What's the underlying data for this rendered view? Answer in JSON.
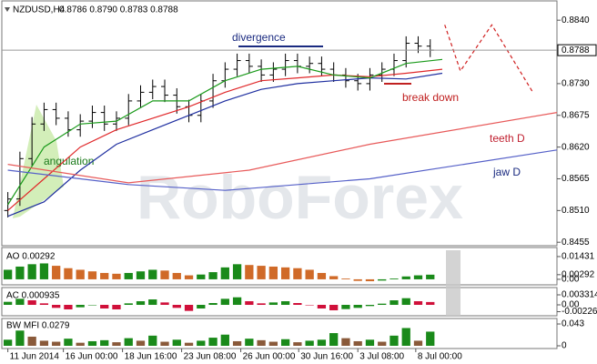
{
  "chart_data": [
    {
      "type": "ohlc",
      "title": "NZDUSD,H4",
      "subtitle": "0.8786 0.8790 0.8783 0.8788",
      "watermark": "RoboForex",
      "annotations": [
        "divergence",
        "break down",
        "angulation",
        "teeth D",
        "jaw D"
      ],
      "xlim": [
        -0.5,
        45.5
      ],
      "ylim": [
        0.8449,
        0.8875
      ],
      "yticks": [
        {
          "value": 0.884,
          "label": "0.8840"
        },
        {
          "value": 0.873,
          "label": "0.8730"
        },
        0.8675,
        {
          "value": 0.862,
          "label": "0.8620"
        },
        0.8565,
        {
          "value": 0.851,
          "label": "0.8510"
        },
        0.8455
      ],
      "current_price": 0.8788,
      "color": "#000000",
      "open": [
        0.851,
        0.853,
        0.86,
        0.866,
        0.8685,
        0.867,
        0.865,
        0.8665,
        0.868,
        0.866,
        0.867,
        0.87,
        0.8715,
        0.8725,
        0.871,
        0.869,
        0.8675,
        0.87,
        0.8735,
        0.8755,
        0.877,
        0.876,
        0.8745,
        0.8755,
        0.877,
        0.876,
        0.8765,
        0.8755,
        0.8745,
        0.8735,
        0.873,
        0.8745,
        0.8755,
        0.877,
        0.88,
        0.8795
      ],
      "high": [
        0.8542,
        0.8612,
        0.8672,
        0.8697,
        0.8697,
        0.8682,
        0.8677,
        0.8692,
        0.8692,
        0.8682,
        0.8712,
        0.8727,
        0.8737,
        0.8737,
        0.8722,
        0.8702,
        0.8712,
        0.8747,
        0.8767,
        0.8782,
        0.8782,
        0.8772,
        0.8767,
        0.8782,
        0.8782,
        0.8777,
        0.8777,
        0.8767,
        0.8757,
        0.8747,
        0.8757,
        0.8767,
        0.8782,
        0.8812,
        0.8812,
        0.8807
      ],
      "low": [
        0.8498,
        0.8518,
        0.8588,
        0.8648,
        0.8658,
        0.8638,
        0.8638,
        0.8653,
        0.8648,
        0.8648,
        0.8658,
        0.8688,
        0.8703,
        0.8698,
        0.8678,
        0.8663,
        0.8663,
        0.8688,
        0.8723,
        0.8743,
        0.8748,
        0.8733,
        0.8733,
        0.8743,
        0.8748,
        0.8748,
        0.8743,
        0.8733,
        0.8723,
        0.8718,
        0.8718,
        0.8733,
        0.8743,
        0.8758,
        0.8783,
        0.8776
      ],
      "close": [
        0.853,
        0.86,
        0.866,
        0.8685,
        0.867,
        0.865,
        0.8665,
        0.868,
        0.866,
        0.867,
        0.87,
        0.8715,
        0.8725,
        0.871,
        0.869,
        0.8675,
        0.87,
        0.8735,
        0.8755,
        0.877,
        0.876,
        0.8745,
        0.8755,
        0.877,
        0.876,
        0.8765,
        0.8755,
        0.8745,
        0.8735,
        0.873,
        0.8745,
        0.8755,
        0.877,
        0.88,
        0.8795,
        0.8788
      ],
      "series": [
        {
          "color": "#1f2fa0",
          "x": [
            0,
            3,
            6,
            9,
            12,
            15,
            18,
            21,
            24,
            27,
            30,
            33,
            36
          ],
          "values": [
            0.85,
            0.8525,
            0.858,
            0.8625,
            0.865,
            0.8675,
            0.87,
            0.872,
            0.873,
            0.8735,
            0.874,
            0.8738,
            0.8748
          ]
        },
        {
          "color": "#e0282a",
          "x": [
            0,
            3,
            6,
            9,
            12,
            15,
            18,
            21,
            24,
            27,
            30,
            33,
            36
          ],
          "values": [
            0.851,
            0.8565,
            0.862,
            0.865,
            0.867,
            0.869,
            0.8715,
            0.8735,
            0.874,
            0.8745,
            0.8742,
            0.8748,
            0.8755
          ]
        },
        {
          "color": "#1a9a1a",
          "x": [
            0,
            3,
            6,
            9,
            12,
            15,
            18,
            21,
            24,
            27,
            30,
            33,
            36
          ],
          "values": [
            0.852,
            0.862,
            0.866,
            0.8665,
            0.87,
            0.87,
            0.8735,
            0.8755,
            0.876,
            0.8745,
            0.874,
            0.8765,
            0.8772
          ]
        },
        {
          "color": "#e85a5a",
          "x": [
            0,
            10,
            20,
            30,
            45.5
          ],
          "values": [
            0.859,
            0.8558,
            0.858,
            0.8625,
            0.868
          ]
        },
        {
          "color": "#5560c8",
          "x": [
            0,
            10,
            18,
            30,
            45.5
          ],
          "values": [
            0.858,
            0.8555,
            0.8545,
            0.8565,
            0.8615
          ]
        },
        {
          "color": "#d02020",
          "dashed": true,
          "x": [
            36.2,
            37.5,
            40.1,
            43.5
          ],
          "values": [
            0.8832,
            0.8752,
            0.8832,
            0.8715
          ]
        }
      ]
    },
    {
      "type": "bar",
      "title": "AO 0.00292",
      "xlim": [
        -0.5,
        45.5
      ],
      "ylim": [
        -0.0029,
        0.02
      ],
      "yticks": [
        0.01431,
        0.00292,
        {
          "value": 0,
          "label": "0.00"
        }
      ],
      "up_color": "#1a8a1a",
      "down_color": "#d06a28",
      "values": [
        0.006,
        0.008,
        0.0095,
        0.01,
        0.0085,
        0.007,
        0.006,
        0.005,
        0.004,
        0.0035,
        0.004,
        0.005,
        0.006,
        0.0055,
        0.004,
        0.0025,
        0.003,
        0.0045,
        0.0075,
        0.0095,
        0.009,
        0.0085,
        0.008,
        0.0075,
        0.007,
        0.006,
        0.004,
        0.002,
        0.0005,
        -0.001,
        -0.0012,
        -0.0008,
        0.0005,
        0.0018,
        0.0025,
        0.00292
      ]
    },
    {
      "type": "bar",
      "title": "AC 0.000935",
      "xlim": [
        -0.5,
        45.5
      ],
      "ylim": [
        -0.00361,
        0.00572
      ],
      "yticks": [
        0.003314,
        {
          "value": 0,
          "label": "0.00"
        },
        -0.00226
      ],
      "up_color": "#1a8a1a",
      "down_color": "#d0103a",
      "values": [
        0.001,
        0.002,
        0.0015,
        0.0005,
        -0.001,
        -0.0015,
        -0.0008,
        0.0,
        -0.0012,
        -0.0015,
        0.0005,
        0.0012,
        0.0018,
        0.0008,
        -0.001,
        -0.002,
        -0.0012,
        0.0006,
        0.002,
        0.0025,
        0.0012,
        0.0005,
        0.0008,
        0.0012,
        0.0006,
        0.0,
        -0.0012,
        -0.0018,
        -0.0014,
        -0.001,
        -0.0004,
        0.0004,
        0.0015,
        0.0022,
        0.0012,
        0.000935
      ]
    },
    {
      "type": "bar",
      "title": "BW MFI 0.0279",
      "xlim": [
        -0.5,
        45.5
      ],
      "ylim": [
        -0.0036,
        0.052
      ],
      "yticks": [
        0.043,
        0
      ],
      "up_color": "#1a8a1a",
      "down_color": "#8a5a3a",
      "values": [
        0.012,
        0.03,
        0.018,
        0.01,
        0.008,
        0.014,
        0.006,
        0.009,
        0.011,
        0.007,
        0.015,
        0.01,
        0.02,
        0.008,
        0.012,
        0.006,
        0.01,
        0.016,
        0.022,
        0.009,
        0.014,
        0.011,
        0.008,
        0.013,
        0.007,
        0.01,
        0.012,
        0.025,
        0.015,
        0.009,
        0.012,
        0.008,
        0.02,
        0.035,
        0.01,
        0.0279
      ],
      "xticks": [
        {
          "value": 0,
          "label": "11 Jun 2014"
        },
        {
          "value": 4.6,
          "label": "16 Jun 00:00"
        },
        {
          "value": 9.5,
          "label": "18 Jun 16:00"
        },
        {
          "value": 14.4,
          "label": "23 Jun 08:00"
        },
        {
          "value": 19.3,
          "label": "26 Jun 00:00"
        },
        {
          "value": 24.1,
          "label": "30 Jun 16:00"
        },
        {
          "value": 29,
          "label": "3 Jul 08:00"
        },
        {
          "value": 33.8,
          "label": "8 Jul 00:00"
        }
      ]
    }
  ]
}
